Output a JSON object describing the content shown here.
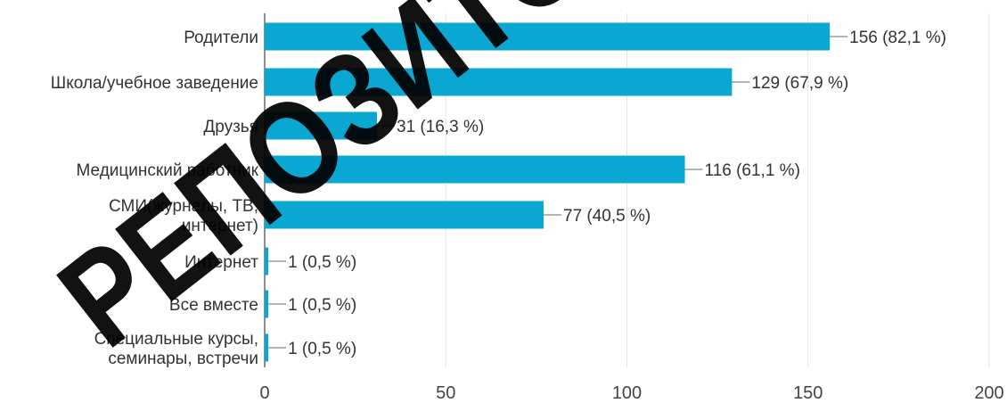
{
  "chart_data": {
    "type": "bar",
    "orientation": "horizontal",
    "categories": [
      [
        "Родители"
      ],
      [
        "Школа/учебное заведение"
      ],
      [
        "Друзья"
      ],
      [
        "Медицинский работник"
      ],
      [
        "СМИ(журналы, ТВ,",
        "интернет)"
      ],
      [
        "Интернет"
      ],
      [
        "Все вместе"
      ],
      [
        "Специальные курсы,",
        "семинары, встречи"
      ]
    ],
    "values": [
      156,
      129,
      31,
      116,
      77,
      1,
      1,
      1
    ],
    "value_labels": [
      "156 (82,1 %)",
      "129 (67,9 %)",
      "31 (16,3 %)",
      "116 (61,1 %)",
      "77 (40,5 %)",
      "1 (0,5 %)",
      "1 (0,5 %)",
      "1 (0,5 %)"
    ],
    "xlim": [
      0,
      200
    ],
    "xticks": [
      0,
      50,
      100,
      150,
      200
    ],
    "grid": true,
    "legend": "none",
    "colors": {
      "bar": "#0aa7d2",
      "grid": "#e3e3e3",
      "axis": "#444444",
      "leader": "#888888"
    }
  },
  "watermark": {
    "text": "РЕПОЗИТОРИЙ",
    "color": "#000000"
  }
}
